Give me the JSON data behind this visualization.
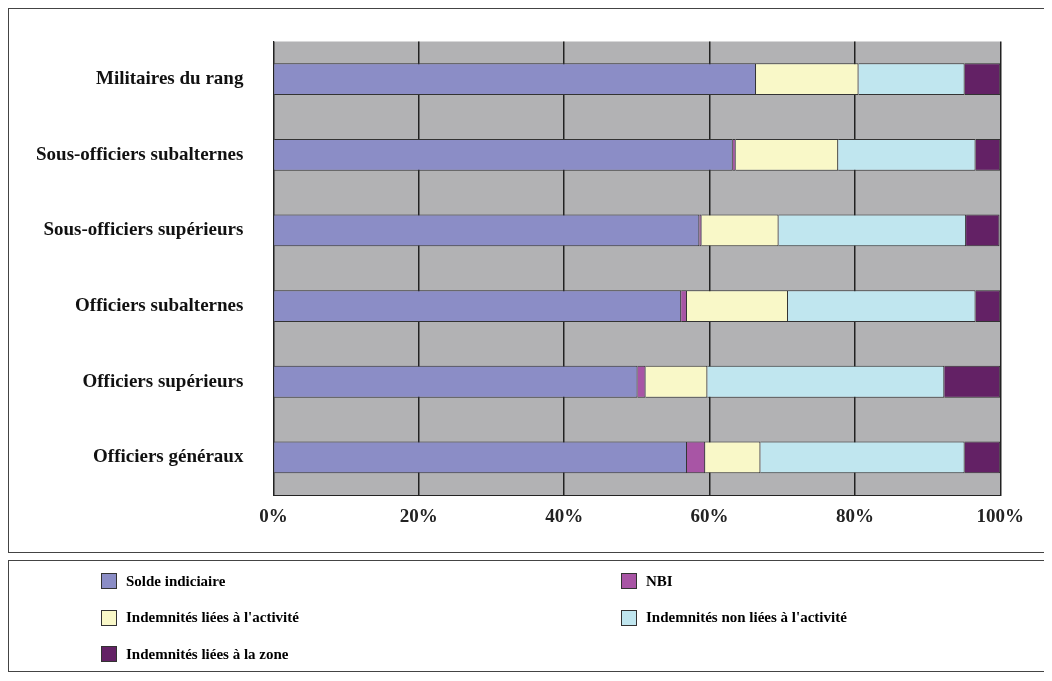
{
  "chart_data": {
    "type": "bar",
    "orientation": "horizontal",
    "stacked": true,
    "categories": [
      "Militaires du rang",
      "Sous-officiers subalternes",
      "Sous-officiers supérieurs",
      "Officiers subalternes",
      "Officiers supérieurs",
      "Officiers généraux"
    ],
    "series": [
      {
        "name": "Solde indiciaire",
        "color": "#8b8dc6",
        "values": [
          66.4,
          63.2,
          58.6,
          56.1,
          50.1,
          56.9
        ]
      },
      {
        "name": "NBI",
        "color": "#a855a5",
        "values": [
          0,
          0.4,
          0.3,
          0.8,
          1.1,
          2.5
        ]
      },
      {
        "name": "Indemnités liées à l'activité",
        "color": "#f9f8c8",
        "values": [
          14.1,
          14.1,
          10.6,
          13.9,
          8.5,
          7.6
        ]
      },
      {
        "name": "Indemnités non liées à l'activité",
        "color": "#c0e6ef",
        "values": [
          14.6,
          18.9,
          25.8,
          25.8,
          32.6,
          28.1
        ]
      },
      {
        "name": "Indemnités liées à la zone",
        "color": "#632165",
        "values": [
          4.9,
          3.4,
          4.6,
          3.4,
          7.7,
          4.9
        ]
      }
    ],
    "xlim": [
      0,
      100
    ],
    "xticks": [
      {
        "value": 0,
        "label": "0%"
      },
      {
        "value": 20,
        "label": "20%"
      },
      {
        "value": 40,
        "label": "40%"
      },
      {
        "value": 60,
        "label": "60%"
      },
      {
        "value": 80,
        "label": "80%"
      },
      {
        "value": 100,
        "label": "100%"
      }
    ],
    "grid": "x",
    "legend": "bottom"
  }
}
